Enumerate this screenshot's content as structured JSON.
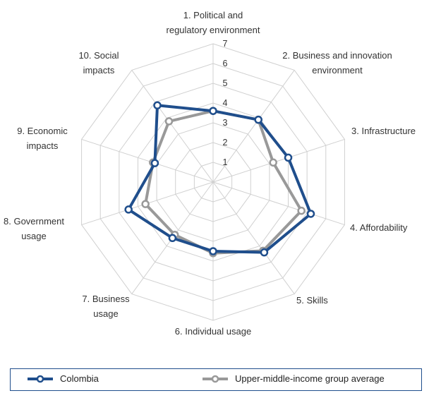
{
  "chart_data": {
    "type": "radar",
    "axes": [
      "1. Political and regulatory environment",
      "2. Business and innovation environment",
      "3. Infrastructure",
      "4. Affordability",
      "5. Skills",
      "6. Individual usage",
      "7. Business usage",
      "8. Government usage",
      "9. Economic impacts",
      "10. Social impacts"
    ],
    "axis_label_lines": [
      [
        "1. Political and",
        "regulatory environment"
      ],
      [
        "2. Business and innovation",
        "environment"
      ],
      [
        "3. Infrastructure"
      ],
      [
        "4. Affordability"
      ],
      [
        "5. Skills"
      ],
      [
        "6. Individual usage"
      ],
      [
        "7. Business",
        "usage"
      ],
      [
        "8. Government",
        "usage"
      ],
      [
        "9. Economic",
        "impacts"
      ],
      [
        "10. Social",
        "impacts"
      ]
    ],
    "rlim": [
      0,
      7
    ],
    "ticks": [
      "1",
      "2",
      "3",
      "4",
      "5",
      "6",
      "7"
    ],
    "series": [
      {
        "name": "Colombia",
        "color": "#1f4e8c",
        "values": [
          3.6,
          3.9,
          4.0,
          5.2,
          4.4,
          3.5,
          3.5,
          4.5,
          3.1,
          4.8
        ]
      },
      {
        "name": "Upper-middle-income group average",
        "color": "#999999",
        "values": [
          3.6,
          3.9,
          3.2,
          4.7,
          4.3,
          3.6,
          3.3,
          3.6,
          3.2,
          3.8
        ]
      }
    ],
    "grid": true,
    "legend": "bottom"
  }
}
